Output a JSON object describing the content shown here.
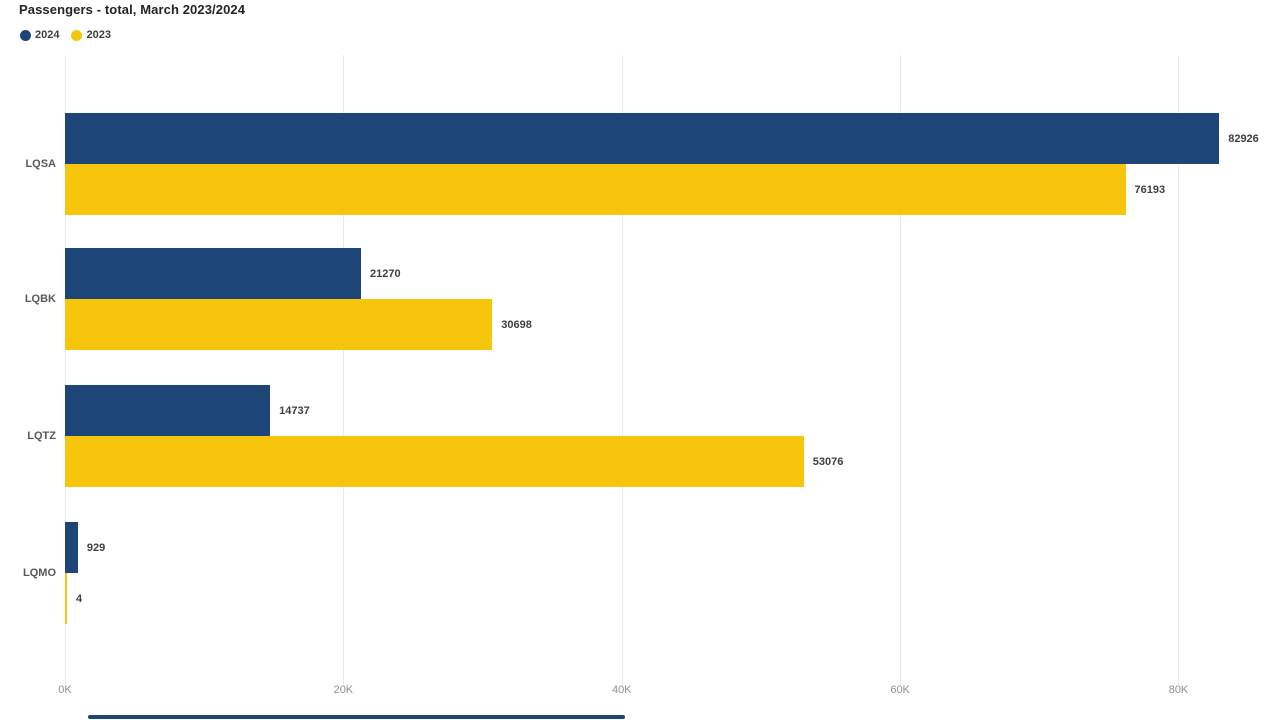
{
  "title": "Passengers - total, March 2023/2024",
  "legend": {
    "items": [
      {
        "label": "2024",
        "color": "#1E4577"
      },
      {
        "label": "2023",
        "color": "#F7C60C"
      }
    ]
  },
  "chart_data": {
    "type": "bar",
    "orientation": "horizontal",
    "title": "Passengers - total, March 2023/2024",
    "categories": [
      "LQSA",
      "LQBK",
      "LQTZ",
      "LQMO"
    ],
    "series": [
      {
        "name": "2024",
        "color": "#1E4577",
        "values": [
          82926,
          21270,
          14737,
          929
        ]
      },
      {
        "name": "2023",
        "color": "#F7C60C",
        "values": [
          76193,
          30698,
          53076,
          4
        ]
      }
    ],
    "x_ticks": [
      {
        "label": "0K",
        "value": 0
      },
      {
        "label": "20K",
        "value": 20000
      },
      {
        "label": "40K",
        "value": 40000
      },
      {
        "label": "60K",
        "value": 60000
      },
      {
        "label": "80K",
        "value": 80000
      }
    ],
    "xlim": [
      0,
      86000
    ],
    "grid": true,
    "legend_position": "top-left",
    "value_labels_visible": true,
    "xlabel": "",
    "ylabel": ""
  },
  "colors": {
    "background": "#FFFFFF",
    "title": "#252423",
    "gridline": "#EAEAEA",
    "category_label": "#595959",
    "value_label": "#404040",
    "tick_label": "#8F8F8F",
    "scrollbar": "#1E4577"
  }
}
